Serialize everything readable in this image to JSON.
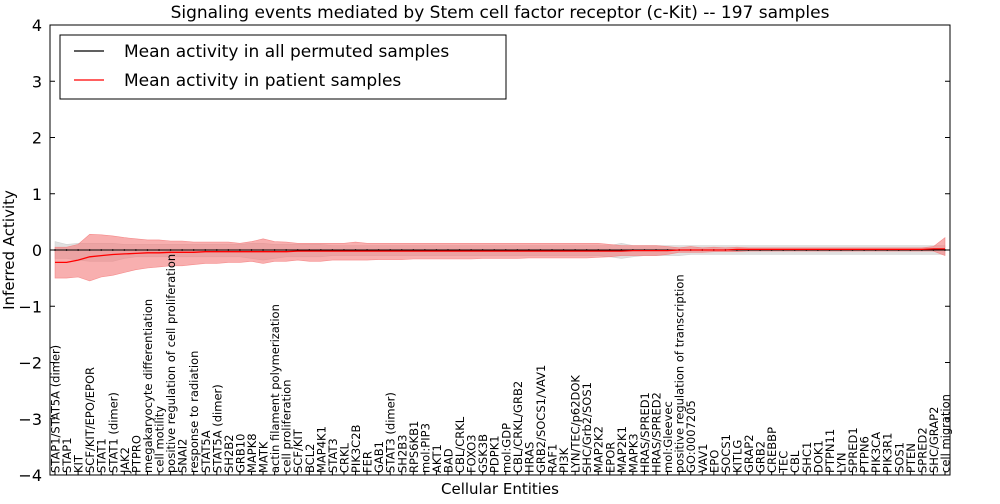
{
  "chart_data": {
    "type": "line",
    "title": "Signaling events mediated by Stem cell factor receptor (c-Kit) -- 197 samples",
    "xlabel": "Cellular Entities",
    "ylabel": "Inferred Activity",
    "ylim": [
      -4,
      4
    ],
    "yticks": [
      -4,
      -3,
      -2,
      -1,
      0,
      1,
      2,
      3,
      4
    ],
    "ytick_labels": [
      "−4",
      "−3",
      "−2",
      "−1",
      "0",
      "1",
      "2",
      "3",
      "4"
    ],
    "grid": false,
    "legend_position": "top-left",
    "legend": [
      {
        "label": "Mean activity in all permuted samples",
        "color": "#000000"
      },
      {
        "label": "Mean activity in patient samples",
        "color": "#ff0000"
      }
    ],
    "colors": {
      "permuted_line": "#000000",
      "permuted_band": "#cccccc",
      "patient_line": "#ff0000",
      "patient_band": "#f47a7a"
    },
    "categories": [
      "STAP1/STAT5A (dimer)",
      "STAP1",
      "KIT",
      "SCF/KIT/EPO/EPOR",
      "STAT1",
      "STAT1 (dimer)",
      "JAK2",
      "PTPRO",
      "megakaryocyte differentiation",
      "cell motility",
      "positive regulation of cell proliferation",
      "SNAI2",
      "response to radiation",
      "STAT5A",
      "STAT5A (dimer)",
      "SH2B2",
      "GRB10",
      "MAPK8",
      "MATK",
      "actin filament polymerization",
      "cell proliferation",
      "SCF/KIT",
      "BCL2",
      "MAP4K1",
      "STAT3",
      "CRKL",
      "PIK3C2B",
      "FER",
      "GAB1",
      "STAT3 (dimer)",
      "SH2B3",
      "RPS6KB1",
      "mol:PIP3",
      "AKT1",
      "BAD",
      "CBL/CRKL",
      "FOXO3",
      "GSK3B",
      "PDPK1",
      "mol:GDP",
      "CBL/CRKL/GRB2",
      "HRAS",
      "GRB2/SOCS1/VAV1",
      "RAF1",
      "PI3K",
      "LYN/TEC/p62DOK",
      "SHC/Grb2/SOS1",
      "MAP2K2",
      "EPOR",
      "MAP2K1",
      "MAPK3",
      "HRAS/SPRED1",
      "HRAS/SPRED2",
      "mol:Gleevec",
      "positive regulation of transcription",
      "GO:0007205",
      "VAV1",
      "EPO",
      "SOCS1",
      "KITLG",
      "GRAP2",
      "GRB2",
      "CREBBP",
      "TEC",
      "CBL",
      "SHC1",
      "DOK1",
      "PTPN11",
      "LYN",
      "SPRED1",
      "PTPN6",
      "PIK3CA",
      "PIK3R1",
      "SOS1",
      "PTEN",
      "SPRED2",
      "SHC/GRAP2",
      "cell migration"
    ],
    "series": [
      {
        "name": "Mean activity in all permuted samples",
        "values": [
          0,
          0,
          0,
          0,
          0,
          0,
          0,
          0,
          0,
          0,
          0,
          0,
          0,
          0,
          0,
          0,
          0,
          0,
          0,
          0,
          0,
          0,
          0,
          0,
          0,
          0,
          0,
          0,
          0,
          0,
          0,
          0,
          0,
          0,
          0,
          0,
          0,
          0,
          0,
          0,
          0,
          0,
          0,
          0,
          0,
          0,
          0,
          0,
          0,
          0,
          0,
          0,
          0,
          0,
          0,
          0,
          0,
          0,
          0,
          0,
          0,
          0,
          0,
          0,
          0,
          0,
          0,
          0,
          0,
          0,
          0,
          0,
          0,
          0,
          0,
          0,
          0,
          0
        ],
        "band_low": [
          -0.15,
          -0.15,
          -0.18,
          -0.2,
          -0.2,
          -0.2,
          -0.15,
          -0.12,
          -0.12,
          -0.12,
          -0.12,
          -0.12,
          -0.12,
          -0.12,
          -0.12,
          -0.12,
          -0.12,
          -0.15,
          -0.18,
          -0.15,
          -0.12,
          -0.12,
          -0.12,
          -0.12,
          -0.1,
          -0.1,
          -0.1,
          -0.1,
          -0.1,
          -0.1,
          -0.1,
          -0.1,
          -0.1,
          -0.1,
          -0.1,
          -0.1,
          -0.1,
          -0.1,
          -0.1,
          -0.1,
          -0.1,
          -0.1,
          -0.1,
          -0.1,
          -0.1,
          -0.1,
          -0.1,
          -0.1,
          -0.12,
          -0.15,
          -0.12,
          -0.1,
          -0.1,
          -0.1,
          -0.1,
          -0.08,
          -0.08,
          -0.08,
          -0.08,
          -0.08,
          -0.08,
          -0.08,
          -0.08,
          -0.08,
          -0.08,
          -0.08,
          -0.08,
          -0.08,
          -0.08,
          -0.08,
          -0.08,
          -0.08,
          -0.08,
          -0.08,
          -0.08,
          -0.08,
          -0.08,
          -0.08
        ],
        "band_high": [
          0.15,
          0.1,
          0.12,
          0.12,
          0.12,
          0.12,
          0.1,
          0.1,
          0.1,
          0.1,
          0.1,
          0.1,
          0.1,
          0.1,
          0.1,
          0.1,
          0.1,
          0.12,
          0.12,
          0.1,
          0.1,
          0.1,
          0.1,
          0.1,
          0.08,
          0.08,
          0.08,
          0.08,
          0.08,
          0.08,
          0.08,
          0.08,
          0.08,
          0.08,
          0.08,
          0.08,
          0.08,
          0.08,
          0.08,
          0.08,
          0.08,
          0.08,
          0.08,
          0.08,
          0.08,
          0.08,
          0.08,
          0.08,
          0.08,
          0.12,
          0.08,
          0.08,
          0.08,
          0.08,
          0.08,
          0.08,
          0.08,
          0.08,
          0.08,
          0.08,
          0.08,
          0.08,
          0.08,
          0.08,
          0.08,
          0.08,
          0.08,
          0.08,
          0.08,
          0.08,
          0.08,
          0.08,
          0.08,
          0.08,
          0.08,
          0.08,
          0.08,
          0.08
        ]
      },
      {
        "name": "Mean activity in patient samples",
        "values": [
          -0.22,
          -0.22,
          -0.18,
          -0.12,
          -0.1,
          -0.08,
          -0.07,
          -0.06,
          -0.05,
          -0.05,
          -0.04,
          -0.04,
          -0.04,
          -0.03,
          -0.03,
          -0.03,
          -0.03,
          -0.03,
          -0.03,
          -0.03,
          -0.03,
          -0.02,
          -0.02,
          -0.02,
          -0.02,
          -0.02,
          -0.02,
          -0.02,
          -0.02,
          -0.02,
          -0.02,
          -0.02,
          -0.02,
          -0.02,
          -0.02,
          -0.02,
          -0.02,
          -0.02,
          -0.02,
          -0.02,
          -0.02,
          -0.02,
          -0.02,
          -0.02,
          -0.02,
          -0.02,
          -0.02,
          -0.02,
          -0.02,
          -0.02,
          -0.01,
          -0.01,
          -0.01,
          -0.01,
          0,
          0,
          0,
          0,
          0,
          0.01,
          0.01,
          0.01,
          0.01,
          0.01,
          0.01,
          0.01,
          0.01,
          0.01,
          0.01,
          0.01,
          0.01,
          0.01,
          0.01,
          0.01,
          0.01,
          0.01,
          0.02,
          0.02
        ],
        "band_low": [
          -0.5,
          -0.5,
          -0.48,
          -0.55,
          -0.48,
          -0.45,
          -0.4,
          -0.35,
          -0.32,
          -0.3,
          -0.28,
          -0.28,
          -0.26,
          -0.24,
          -0.24,
          -0.22,
          -0.22,
          -0.2,
          -0.24,
          -0.2,
          -0.2,
          -0.18,
          -0.2,
          -0.2,
          -0.18,
          -0.18,
          -0.18,
          -0.18,
          -0.17,
          -0.17,
          -0.17,
          -0.16,
          -0.16,
          -0.16,
          -0.16,
          -0.16,
          -0.16,
          -0.15,
          -0.15,
          -0.15,
          -0.15,
          -0.14,
          -0.14,
          -0.14,
          -0.14,
          -0.14,
          -0.14,
          -0.13,
          -0.12,
          -0.1,
          -0.1,
          -0.1,
          -0.1,
          -0.08,
          -0.04,
          -0.04,
          -0.04,
          -0.03,
          -0.03,
          -0.03,
          -0.02,
          -0.02,
          -0.02,
          -0.02,
          -0.02,
          -0.02,
          -0.02,
          -0.02,
          -0.02,
          -0.02,
          -0.02,
          -0.02,
          -0.02,
          -0.02,
          -0.02,
          -0.02,
          -0.02,
          -0.1
        ],
        "band_high": [
          0.05,
          0.05,
          0.1,
          0.28,
          0.27,
          0.25,
          0.22,
          0.2,
          0.18,
          0.18,
          0.16,
          0.16,
          0.14,
          0.14,
          0.14,
          0.14,
          0.12,
          0.15,
          0.2,
          0.15,
          0.14,
          0.12,
          0.12,
          0.12,
          0.12,
          0.12,
          0.14,
          0.12,
          0.12,
          0.12,
          0.12,
          0.12,
          0.12,
          0.12,
          0.12,
          0.12,
          0.12,
          0.12,
          0.12,
          0.12,
          0.12,
          0.12,
          0.12,
          0.12,
          0.12,
          0.12,
          0.12,
          0.12,
          0.1,
          0.08,
          0.08,
          0.08,
          0.08,
          0.06,
          0.04,
          0.06,
          0.04,
          0.05,
          0.04,
          0.05,
          0.04,
          0.04,
          0.04,
          0.04,
          0.04,
          0.04,
          0.04,
          0.04,
          0.04,
          0.04,
          0.04,
          0.04,
          0.04,
          0.04,
          0.04,
          0.04,
          0.06,
          0.22
        ]
      }
    ]
  }
}
